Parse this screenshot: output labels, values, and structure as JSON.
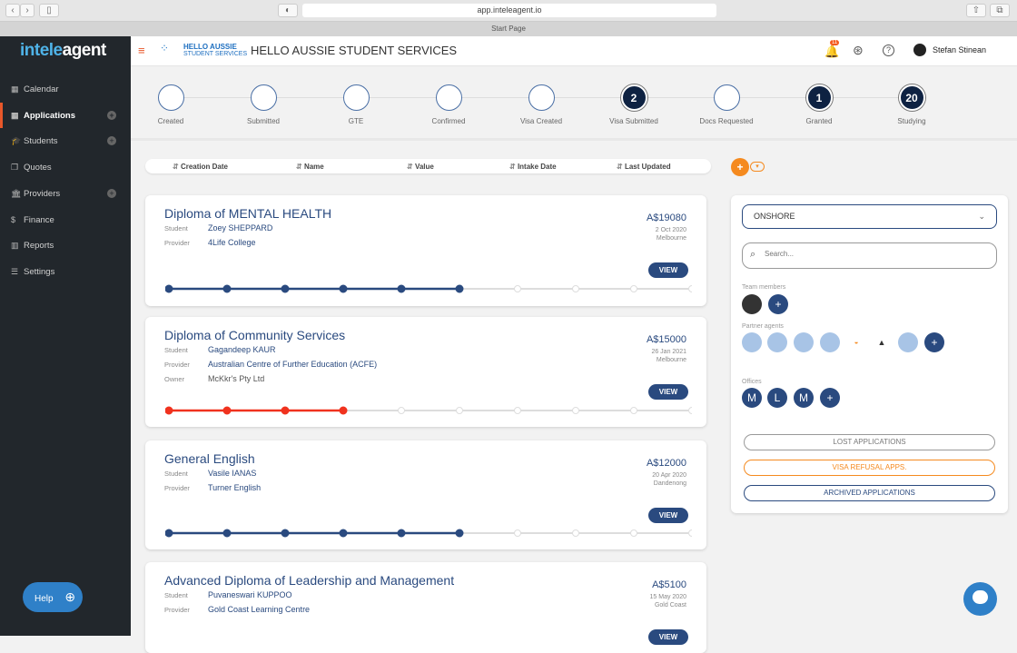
{
  "browser": {
    "url": "app.inteleagent.io",
    "tab_title": "Start Page"
  },
  "sidebar": {
    "logo_a": "intele",
    "logo_b": "agent",
    "items": [
      {
        "label": "Calendar",
        "icon": "calendar-icon",
        "glyph": "▦",
        "plus": false
      },
      {
        "label": "Applications",
        "icon": "grid-icon",
        "glyph": "▦",
        "plus": true,
        "active": true
      },
      {
        "label": "Students",
        "icon": "graduation-cap-icon",
        "glyph": "🎓",
        "plus": true
      },
      {
        "label": "Quotes",
        "icon": "quotes-icon",
        "glyph": "❐",
        "plus": false
      },
      {
        "label": "Providers",
        "icon": "bank-icon",
        "glyph": "🏛",
        "plus": true
      },
      {
        "label": "Finance",
        "icon": "dollar-icon",
        "glyph": "$",
        "plus": false
      },
      {
        "label": "Reports",
        "icon": "bar-chart-icon",
        "glyph": "▥",
        "plus": false
      },
      {
        "label": "Settings",
        "icon": "sliders-icon",
        "glyph": "☰",
        "plus": false
      }
    ],
    "help": "Help"
  },
  "header": {
    "brand_a": "HELLO AUSSIE",
    "brand_b": "STUDENT SERVICES",
    "title": "HELLO AUSSIE STUDENT SERVICES",
    "notifications": "11",
    "user": "Stefan Stinean"
  },
  "steps": [
    {
      "label": "Created",
      "count": ""
    },
    {
      "label": "Submitted",
      "count": ""
    },
    {
      "label": "GTE",
      "count": ""
    },
    {
      "label": "Confirmed",
      "count": ""
    },
    {
      "label": "Visa Created",
      "count": ""
    },
    {
      "label": "Visa Submitted",
      "count": "2"
    },
    {
      "label": "Docs Requested",
      "count": ""
    },
    {
      "label": "Granted",
      "count": "1"
    },
    {
      "label": "Studying",
      "count": "20"
    }
  ],
  "sort": [
    "Creation Date",
    "Name",
    "Value",
    "Intake Date",
    "Last Updated"
  ],
  "add_button": "+",
  "colors": {
    "blue": "#2a4a7f",
    "red": "#f0321e",
    "orange": "#f58a1f",
    "grey": "#dddddd"
  },
  "applications": [
    {
      "title": "Diploma of MENTAL HEALTH",
      "fields": [
        [
          "Student",
          "Zoey SHEPPARD"
        ],
        [
          "Provider",
          "4Life College"
        ]
      ],
      "price": "A$19080",
      "date": "2 Oct 2020",
      "location": "Melbourne",
      "view": "VIEW",
      "progress": 6,
      "total": 10,
      "color": "#2a4a7f"
    },
    {
      "title": "Diploma of Community Services",
      "fields": [
        [
          "Student",
          "Gagandeep KAUR"
        ],
        [
          "Provider",
          "Australian Centre of Further Education (ACFE)"
        ],
        [
          "Owner",
          "McKkr's Pty Ltd"
        ]
      ],
      "price": "A$15000",
      "date": "26 Jan 2021",
      "location": "Melbourne",
      "view": "VIEW",
      "progress": 4,
      "total": 10,
      "color": "#f0321e"
    },
    {
      "title": "General English",
      "fields": [
        [
          "Student",
          "Vasile IANAS"
        ],
        [
          "Provider",
          "Turner English"
        ]
      ],
      "price": "A$12000",
      "date": "20 Apr 2020",
      "location": "Dandenong",
      "view": "VIEW",
      "progress": 6,
      "total": 10,
      "color": "#2a4a7f"
    },
    {
      "title": "Advanced Diploma of Leadership and Management",
      "fields": [
        [
          "Student",
          "Puvaneswari KUPPOO"
        ],
        [
          "Provider",
          "Gold Coast Learning Centre"
        ]
      ],
      "price": "A$5100",
      "date": "15 May 2020",
      "location": "Gold Coast",
      "view": "VIEW",
      "progress": 0,
      "total": 10,
      "color": "#2a4a7f"
    }
  ],
  "panel": {
    "select": "ONSHORE",
    "search_placeholder": "Search...",
    "team_label": "Team members",
    "partner_label": "Partner agents",
    "offices_label": "Offices",
    "offices": [
      "M",
      "L",
      "M"
    ],
    "buttons": [
      "LOST APPLICATIONS",
      "VISA REFUSAL APPS.",
      "ARCHIVED APPLICATIONS"
    ]
  }
}
